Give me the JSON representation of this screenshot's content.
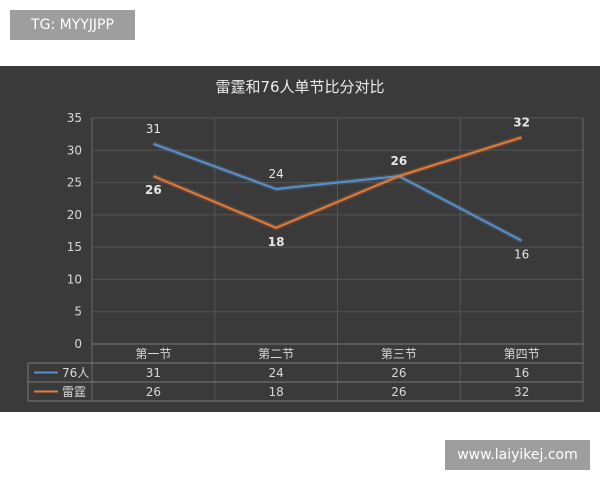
{
  "watermark_top": "TG: MYYJJPP",
  "watermark_bottom": "www.laiyikej.com",
  "chart_data": {
    "type": "line",
    "title": "雷霆和76人单节比分对比",
    "categories": [
      "第一节",
      "第二节",
      "第三节",
      "第四节"
    ],
    "series": [
      {
        "name": "76人",
        "values": [
          31,
          24,
          26,
          16
        ],
        "color": "#5b8fc7"
      },
      {
        "name": "雷霆",
        "values": [
          26,
          18,
          26,
          32
        ],
        "color": "#e07b39"
      }
    ],
    "ylim": [
      0,
      35
    ],
    "yticks": [
      0,
      5,
      10,
      15,
      20,
      25,
      30,
      35
    ],
    "grid": true,
    "legend": "data-table-left"
  }
}
